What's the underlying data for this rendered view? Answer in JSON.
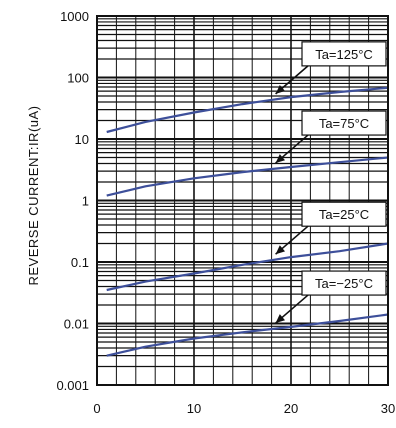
{
  "chart_data": {
    "type": "line",
    "ylabel": "REVERSE CURRENT:IR(uA)",
    "xlabel": "",
    "xlim": [
      0,
      30
    ],
    "ylim": [
      0.001,
      1000
    ],
    "yscale": "log",
    "x_ticks": [
      "0",
      "10",
      "20",
      "30"
    ],
    "y_ticks": [
      "1000",
      "100",
      "10",
      "1",
      "0.1",
      "0.01",
      "0.001"
    ],
    "grid": true,
    "series": [
      {
        "name": "Ta=125°C",
        "x": [
          1,
          5,
          10,
          15,
          20,
          25,
          30
        ],
        "y": [
          13,
          19,
          27,
          37,
          48,
          58,
          68
        ]
      },
      {
        "name": "Ta=75°C",
        "x": [
          1,
          5,
          10,
          15,
          20,
          25,
          30
        ],
        "y": [
          1.2,
          1.7,
          2.3,
          2.9,
          3.5,
          4.2,
          5.0
        ]
      },
      {
        "name": "Ta=25°C",
        "x": [
          1,
          5,
          10,
          15,
          20,
          25,
          30
        ],
        "y": [
          0.035,
          0.048,
          0.065,
          0.09,
          0.12,
          0.15,
          0.2
        ]
      },
      {
        "name": "Ta=-25°C",
        "x": [
          1,
          5,
          10,
          15,
          20,
          25,
          30
        ],
        "y": [
          0.003,
          0.0042,
          0.0057,
          0.0072,
          0.0088,
          0.011,
          0.014
        ]
      }
    ],
    "annotations": [
      {
        "text": "Ta=125°C",
        "series": 0,
        "at_x": 18
      },
      {
        "text": "Ta=75°C",
        "series": 1,
        "at_x": 18
      },
      {
        "text": "Ta=25°C",
        "series": 2,
        "at_x": 18
      },
      {
        "text": "Ta=−25°C",
        "series": 3,
        "at_x": 18
      }
    ],
    "colors": {
      "series": "#3d4f9a",
      "grid": "#111111",
      "background": "#ffffff"
    }
  }
}
